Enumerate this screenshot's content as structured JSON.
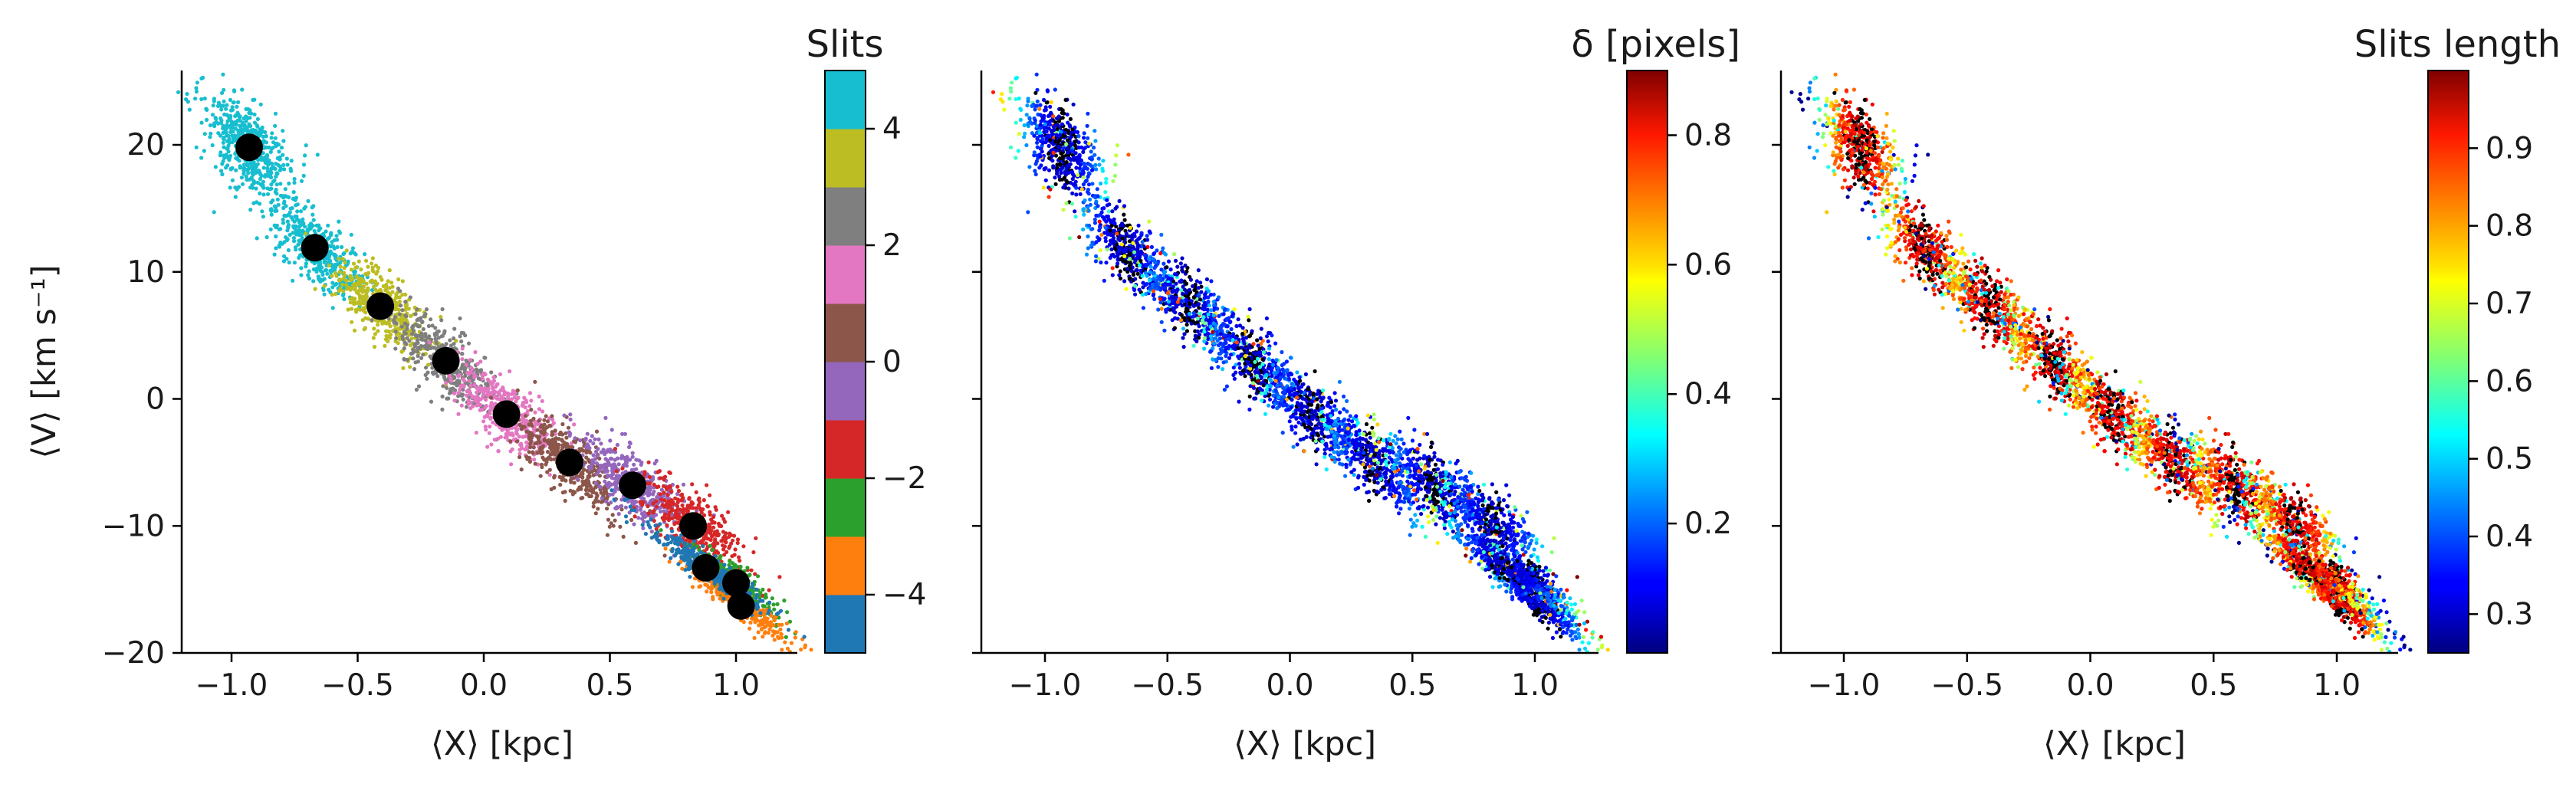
{
  "chart_data": [
    {
      "type": "scatter",
      "panel": "left",
      "colorbar_title": "Slits",
      "xlabel": "⟨X⟩ [kpc]",
      "ylabel": "⟨V⟩ [km s⁻¹]",
      "xlim": [
        -1.3,
        1.4
      ],
      "ylim": [
        -20.5,
        25.5
      ],
      "xticks": [
        -1.0,
        -0.5,
        0.0,
        0.5,
        1.0
      ],
      "xtick_labels": [
        "−1.0",
        "−0.5",
        "0.0",
        "0.5",
        "1.0"
      ],
      "yticks": [
        -20,
        -10,
        0,
        10,
        20
      ],
      "ytick_labels": [
        "−20",
        "−10",
        "0",
        "10",
        "20"
      ],
      "colorbar": {
        "type": "discrete",
        "range": [
          -5,
          5
        ],
        "ticks": [
          -4,
          -2,
          0,
          2,
          4
        ],
        "tick_labels": [
          "−4",
          "−2",
          "0",
          "2",
          "4"
        ],
        "colors": [
          "#1f77b4",
          "#ff7f0e",
          "#2ca02c",
          "#d62728",
          "#9467bd",
          "#8c564b",
          "#e377c2",
          "#7f7f7f",
          "#bcbd22",
          "#17becf"
        ]
      },
      "clusters": [
        {
          "slit": 5,
          "x": -0.93,
          "v": 19.8,
          "color": "#17becf"
        },
        {
          "slit": 4,
          "x": -0.67,
          "v": 11.9,
          "color": "#17becf"
        },
        {
          "slit": 3,
          "x": -0.41,
          "v": 7.3,
          "color": "#bcbd22"
        },
        {
          "slit": 2,
          "x": -0.15,
          "v": 3.0,
          "color": "#7f7f7f"
        },
        {
          "slit": 1,
          "x": 0.09,
          "v": -1.2,
          "color": "#e377c2"
        },
        {
          "slit": 0,
          "x": 0.34,
          "v": -5.0,
          "color": "#8c564b"
        },
        {
          "slit": -1,
          "x": 0.59,
          "v": -6.8,
          "color": "#9467bd"
        },
        {
          "slit": -2,
          "x": 0.83,
          "v": -10.0,
          "color": "#d62728"
        },
        {
          "slit": -3,
          "x": 1.0,
          "v": -14.5,
          "color": "#2ca02c"
        },
        {
          "slit": -4,
          "x": 1.02,
          "v": -16.3,
          "color": "#ff7f0e"
        },
        {
          "slit": -5,
          "x": 0.88,
          "v": -13.3,
          "color": "#1f77b4"
        }
      ],
      "mean_points": [
        {
          "x": -0.93,
          "v": 19.8
        },
        {
          "x": -0.67,
          "v": 11.9
        },
        {
          "x": -0.41,
          "v": 7.3
        },
        {
          "x": -0.15,
          "v": 3.0
        },
        {
          "x": 0.09,
          "v": -1.2
        },
        {
          "x": 0.34,
          "v": -5.0
        },
        {
          "x": 0.59,
          "v": -6.8
        },
        {
          "x": 0.83,
          "v": -10.0
        },
        {
          "x": 0.88,
          "v": -13.3
        },
        {
          "x": 1.0,
          "v": -14.5
        },
        {
          "x": 1.02,
          "v": -16.3
        }
      ]
    },
    {
      "type": "scatter",
      "panel": "middle",
      "colorbar_title": "δ [pixels]",
      "xlabel": "⟨X⟩ [kpc]",
      "xlim": [
        -1.3,
        1.4
      ],
      "xticks": [
        -1.0,
        -0.5,
        0.0,
        0.5,
        1.0
      ],
      "xtick_labels": [
        "−1.0",
        "−0.5",
        "0.0",
        "0.5",
        "1.0"
      ],
      "colorbar": {
        "type": "continuous",
        "colormap": "jet",
        "range": [
          0.0,
          0.9
        ],
        "ticks": [
          0.2,
          0.4,
          0.6,
          0.8
        ],
        "tick_labels": [
          "0.2",
          "0.4",
          "0.6",
          "0.8"
        ]
      }
    },
    {
      "type": "scatter",
      "panel": "right",
      "colorbar_title": "Slits length",
      "xlabel": "⟨X⟩ [kpc]",
      "xlim": [
        -1.3,
        1.4
      ],
      "xticks": [
        -1.0,
        -0.5,
        0.0,
        0.5,
        1.0
      ],
      "xtick_labels": [
        "−1.0",
        "−0.5",
        "0.0",
        "0.5",
        "1.0"
      ],
      "colorbar": {
        "type": "continuous",
        "colormap": "jet",
        "range": [
          0.25,
          1.0
        ],
        "ticks": [
          0.3,
          0.4,
          0.5,
          0.6,
          0.7,
          0.8,
          0.9
        ],
        "tick_labels": [
          "0.3",
          "0.4",
          "0.5",
          "0.6",
          "0.7",
          "0.8",
          "0.9"
        ]
      }
    }
  ]
}
